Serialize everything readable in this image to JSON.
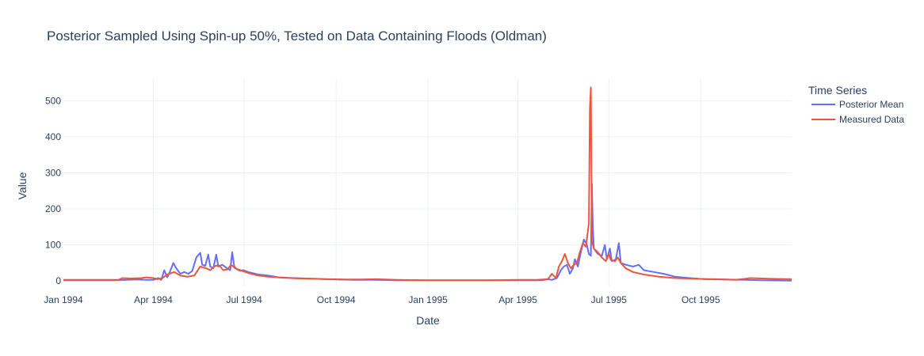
{
  "chart_data": {
    "type": "line",
    "title": "Posterior Sampled Using Spin-up 50%, Tested on Data Containing Floods (Oldman)",
    "xlabel": "Date",
    "ylabel": "Value",
    "xlim": [
      "1994-01-01",
      "1995-12-31"
    ],
    "ylim": [
      -15,
      560
    ],
    "xticks": [
      {
        "date": "1994-01-01",
        "label": "Jan 1994"
      },
      {
        "date": "1994-04-01",
        "label": "Apr 1994"
      },
      {
        "date": "1994-07-01",
        "label": "Jul 1994"
      },
      {
        "date": "1994-10-01",
        "label": "Oct 1994"
      },
      {
        "date": "1995-01-01",
        "label": "Jan 1995"
      },
      {
        "date": "1995-04-01",
        "label": "Apr 1995"
      },
      {
        "date": "1995-07-01",
        "label": "Jul 1995"
      },
      {
        "date": "1995-10-01",
        "label": "Oct 1995"
      }
    ],
    "yticks": [
      0,
      100,
      200,
      300,
      400,
      500
    ],
    "grid": true,
    "legend": {
      "title": "Time Series",
      "position": "right"
    },
    "series": [
      {
        "name": "Posterior Mean",
        "color": "#636efa",
        "points": [
          [
            "1994-01-01",
            2
          ],
          [
            "1994-02-01",
            2
          ],
          [
            "1994-02-20",
            2
          ],
          [
            "1994-03-05",
            3
          ],
          [
            "1994-03-15",
            4
          ],
          [
            "1994-03-25",
            3
          ],
          [
            "1994-04-01",
            3
          ],
          [
            "1994-04-06",
            8
          ],
          [
            "1994-04-09",
            3
          ],
          [
            "1994-04-12",
            30
          ],
          [
            "1994-04-15",
            10
          ],
          [
            "1994-04-18",
            28
          ],
          [
            "1994-04-21",
            50
          ],
          [
            "1994-04-24",
            35
          ],
          [
            "1994-04-28",
            20
          ],
          [
            "1994-05-02",
            25
          ],
          [
            "1994-05-06",
            20
          ],
          [
            "1994-05-10",
            28
          ],
          [
            "1994-05-14",
            65
          ],
          [
            "1994-05-18",
            78
          ],
          [
            "1994-05-20",
            45
          ],
          [
            "1994-05-23",
            42
          ],
          [
            "1994-05-26",
            73
          ],
          [
            "1994-05-28",
            40
          ],
          [
            "1994-05-31",
            35
          ],
          [
            "1994-06-03",
            73
          ],
          [
            "1994-06-05",
            40
          ],
          [
            "1994-06-09",
            45
          ],
          [
            "1994-06-14",
            35
          ],
          [
            "1994-06-17",
            30
          ],
          [
            "1994-06-19",
            80
          ],
          [
            "1994-06-21",
            40
          ],
          [
            "1994-06-24",
            32
          ],
          [
            "1994-06-27",
            28
          ],
          [
            "1994-06-30",
            30
          ],
          [
            "1994-07-05",
            25
          ],
          [
            "1994-07-15",
            18
          ],
          [
            "1994-07-25",
            15
          ],
          [
            "1994-08-05",
            10
          ],
          [
            "1994-08-20",
            8
          ],
          [
            "1994-09-10",
            6
          ],
          [
            "1994-09-20",
            5
          ],
          [
            "1994-10-01",
            4
          ],
          [
            "1994-10-20",
            3
          ],
          [
            "1994-11-10",
            3
          ],
          [
            "1994-12-01",
            2
          ],
          [
            "1995-01-01",
            2
          ],
          [
            "1995-02-01",
            2
          ],
          [
            "1995-03-01",
            2
          ],
          [
            "1995-04-01",
            2
          ],
          [
            "1995-04-25",
            2
          ],
          [
            "1995-05-01",
            5
          ],
          [
            "1995-05-05",
            3
          ],
          [
            "1995-05-10",
            8
          ],
          [
            "1995-05-14",
            30
          ],
          [
            "1995-05-17",
            40
          ],
          [
            "1995-05-20",
            45
          ],
          [
            "1995-05-23",
            20
          ],
          [
            "1995-05-26",
            35
          ],
          [
            "1995-05-28",
            60
          ],
          [
            "1995-05-31",
            40
          ],
          [
            "1995-06-03",
            80
          ],
          [
            "1995-06-06",
            115
          ],
          [
            "1995-06-09",
            100
          ],
          [
            "1995-06-11",
            75
          ],
          [
            "1995-06-13",
            70
          ],
          [
            "1995-06-14",
            270
          ],
          [
            "1995-06-15",
            150
          ],
          [
            "1995-06-16",
            90
          ],
          [
            "1995-06-20",
            75
          ],
          [
            "1995-06-24",
            70
          ],
          [
            "1995-06-27",
            100
          ],
          [
            "1995-06-29",
            60
          ],
          [
            "1995-07-02",
            90
          ],
          [
            "1995-07-04",
            55
          ],
          [
            "1995-07-08",
            60
          ],
          [
            "1995-07-11",
            105
          ],
          [
            "1995-07-13",
            50
          ],
          [
            "1995-07-18",
            45
          ],
          [
            "1995-07-25",
            40
          ],
          [
            "1995-07-31",
            45
          ],
          [
            "1995-08-05",
            30
          ],
          [
            "1995-08-15",
            25
          ],
          [
            "1995-08-25",
            20
          ],
          [
            "1995-09-05",
            12
          ],
          [
            "1995-09-20",
            8
          ],
          [
            "1995-10-05",
            5
          ],
          [
            "1995-10-25",
            4
          ],
          [
            "1995-11-15",
            3
          ],
          [
            "1995-12-01",
            2
          ],
          [
            "1995-12-31",
            1
          ]
        ]
      },
      {
        "name": "Measured Data",
        "color": "#ef553b",
        "points": [
          [
            "1994-01-01",
            3
          ],
          [
            "1994-02-01",
            3
          ],
          [
            "1994-02-25",
            3
          ],
          [
            "1994-03-01",
            8
          ],
          [
            "1994-03-10",
            7
          ],
          [
            "1994-03-20",
            8
          ],
          [
            "1994-03-25",
            10
          ],
          [
            "1994-04-01",
            8
          ],
          [
            "1994-04-05",
            5
          ],
          [
            "1994-04-10",
            8
          ],
          [
            "1994-04-15",
            18
          ],
          [
            "1994-04-22",
            25
          ],
          [
            "1994-04-28",
            15
          ],
          [
            "1994-05-05",
            12
          ],
          [
            "1994-05-12",
            15
          ],
          [
            "1994-05-18",
            40
          ],
          [
            "1994-05-24",
            35
          ],
          [
            "1994-05-28",
            30
          ],
          [
            "1994-06-02",
            42
          ],
          [
            "1994-06-06",
            43
          ],
          [
            "1994-06-10",
            30
          ],
          [
            "1994-06-14",
            32
          ],
          [
            "1994-06-18",
            45
          ],
          [
            "1994-06-22",
            35
          ],
          [
            "1994-06-27",
            30
          ],
          [
            "1994-07-05",
            22
          ],
          [
            "1994-07-15",
            15
          ],
          [
            "1994-07-25",
            12
          ],
          [
            "1994-08-10",
            9
          ],
          [
            "1994-08-25",
            7
          ],
          [
            "1994-09-10",
            6
          ],
          [
            "1994-09-25",
            5
          ],
          [
            "1994-10-10",
            4
          ],
          [
            "1994-10-25",
            4
          ],
          [
            "1994-11-10",
            5
          ],
          [
            "1994-12-01",
            3
          ],
          [
            "1995-01-01",
            2
          ],
          [
            "1995-02-01",
            2
          ],
          [
            "1995-03-01",
            2
          ],
          [
            "1995-04-01",
            3
          ],
          [
            "1995-04-20",
            3
          ],
          [
            "1995-05-01",
            5
          ],
          [
            "1995-05-05",
            20
          ],
          [
            "1995-05-09",
            8
          ],
          [
            "1995-05-12",
            40
          ],
          [
            "1995-05-15",
            55
          ],
          [
            "1995-05-18",
            75
          ],
          [
            "1995-05-21",
            50
          ],
          [
            "1995-05-24",
            35
          ],
          [
            "1995-05-27",
            45
          ],
          [
            "1995-05-30",
            50
          ],
          [
            "1995-06-02",
            80
          ],
          [
            "1995-06-05",
            105
          ],
          [
            "1995-06-08",
            95
          ],
          [
            "1995-06-11",
            160
          ],
          [
            "1995-06-12",
            480
          ],
          [
            "1995-06-13",
            537
          ],
          [
            "1995-06-14",
            110
          ],
          [
            "1995-06-16",
            90
          ],
          [
            "1995-06-20",
            80
          ],
          [
            "1995-06-24",
            65
          ],
          [
            "1995-06-28",
            55
          ],
          [
            "1995-07-01",
            75
          ],
          [
            "1995-07-03",
            58
          ],
          [
            "1995-07-07",
            55
          ],
          [
            "1995-07-10",
            65
          ],
          [
            "1995-07-13",
            50
          ],
          [
            "1995-07-18",
            35
          ],
          [
            "1995-07-25",
            25
          ],
          [
            "1995-08-05",
            18
          ],
          [
            "1995-08-20",
            12
          ],
          [
            "1995-09-05",
            8
          ],
          [
            "1995-09-25",
            6
          ],
          [
            "1995-10-15",
            5
          ],
          [
            "1995-11-05",
            3
          ],
          [
            "1995-11-20",
            8
          ],
          [
            "1995-12-10",
            6
          ],
          [
            "1995-12-31",
            5
          ]
        ]
      }
    ]
  }
}
